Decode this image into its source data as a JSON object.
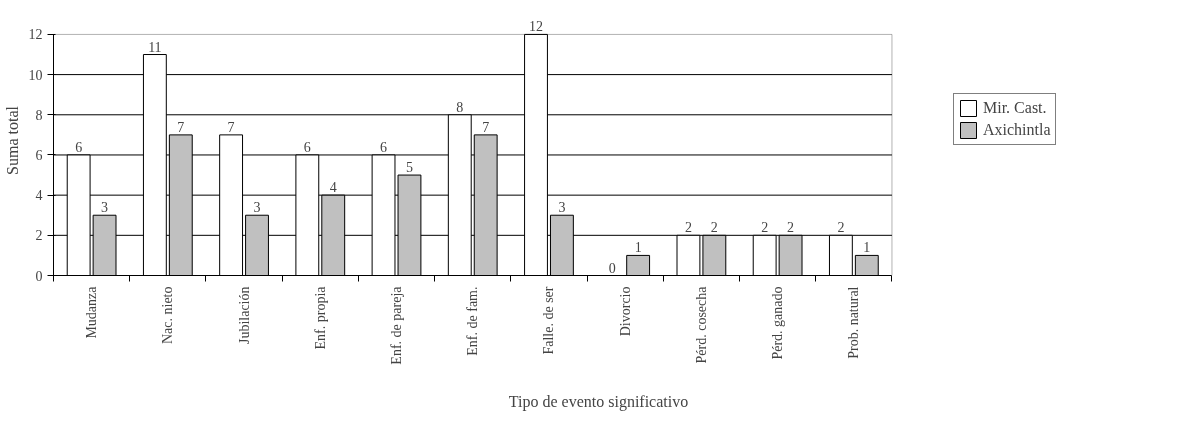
{
  "chart_data": {
    "type": "bar",
    "xlabel": "Tipo de evento significativo",
    "ylabel": "Suma total",
    "categories": [
      "Mudanza",
      "Nac. nieto",
      "Jubilación",
      "Enf. propia",
      "Enf. de pareja",
      "Enf. de fam.",
      "Falle. de ser",
      "Divorcio",
      "Pérd. cosecha",
      "Pérd. ganado",
      "Prob. natural"
    ],
    "series": [
      {
        "name": "Mir. Cast.",
        "color": "#ffffff",
        "values": [
          6,
          11,
          7,
          6,
          6,
          8,
          12,
          0,
          2,
          2,
          2
        ]
      },
      {
        "name": "Axichintla",
        "color": "#c0c0c0",
        "values": [
          3,
          7,
          3,
          4,
          5,
          7,
          3,
          1,
          2,
          2,
          1
        ]
      }
    ],
    "ylim": [
      0,
      12
    ],
    "yticks": [
      0,
      2,
      4,
      6,
      8,
      10,
      12
    ],
    "grid": "y",
    "legend": "right",
    "data_labels": true
  }
}
